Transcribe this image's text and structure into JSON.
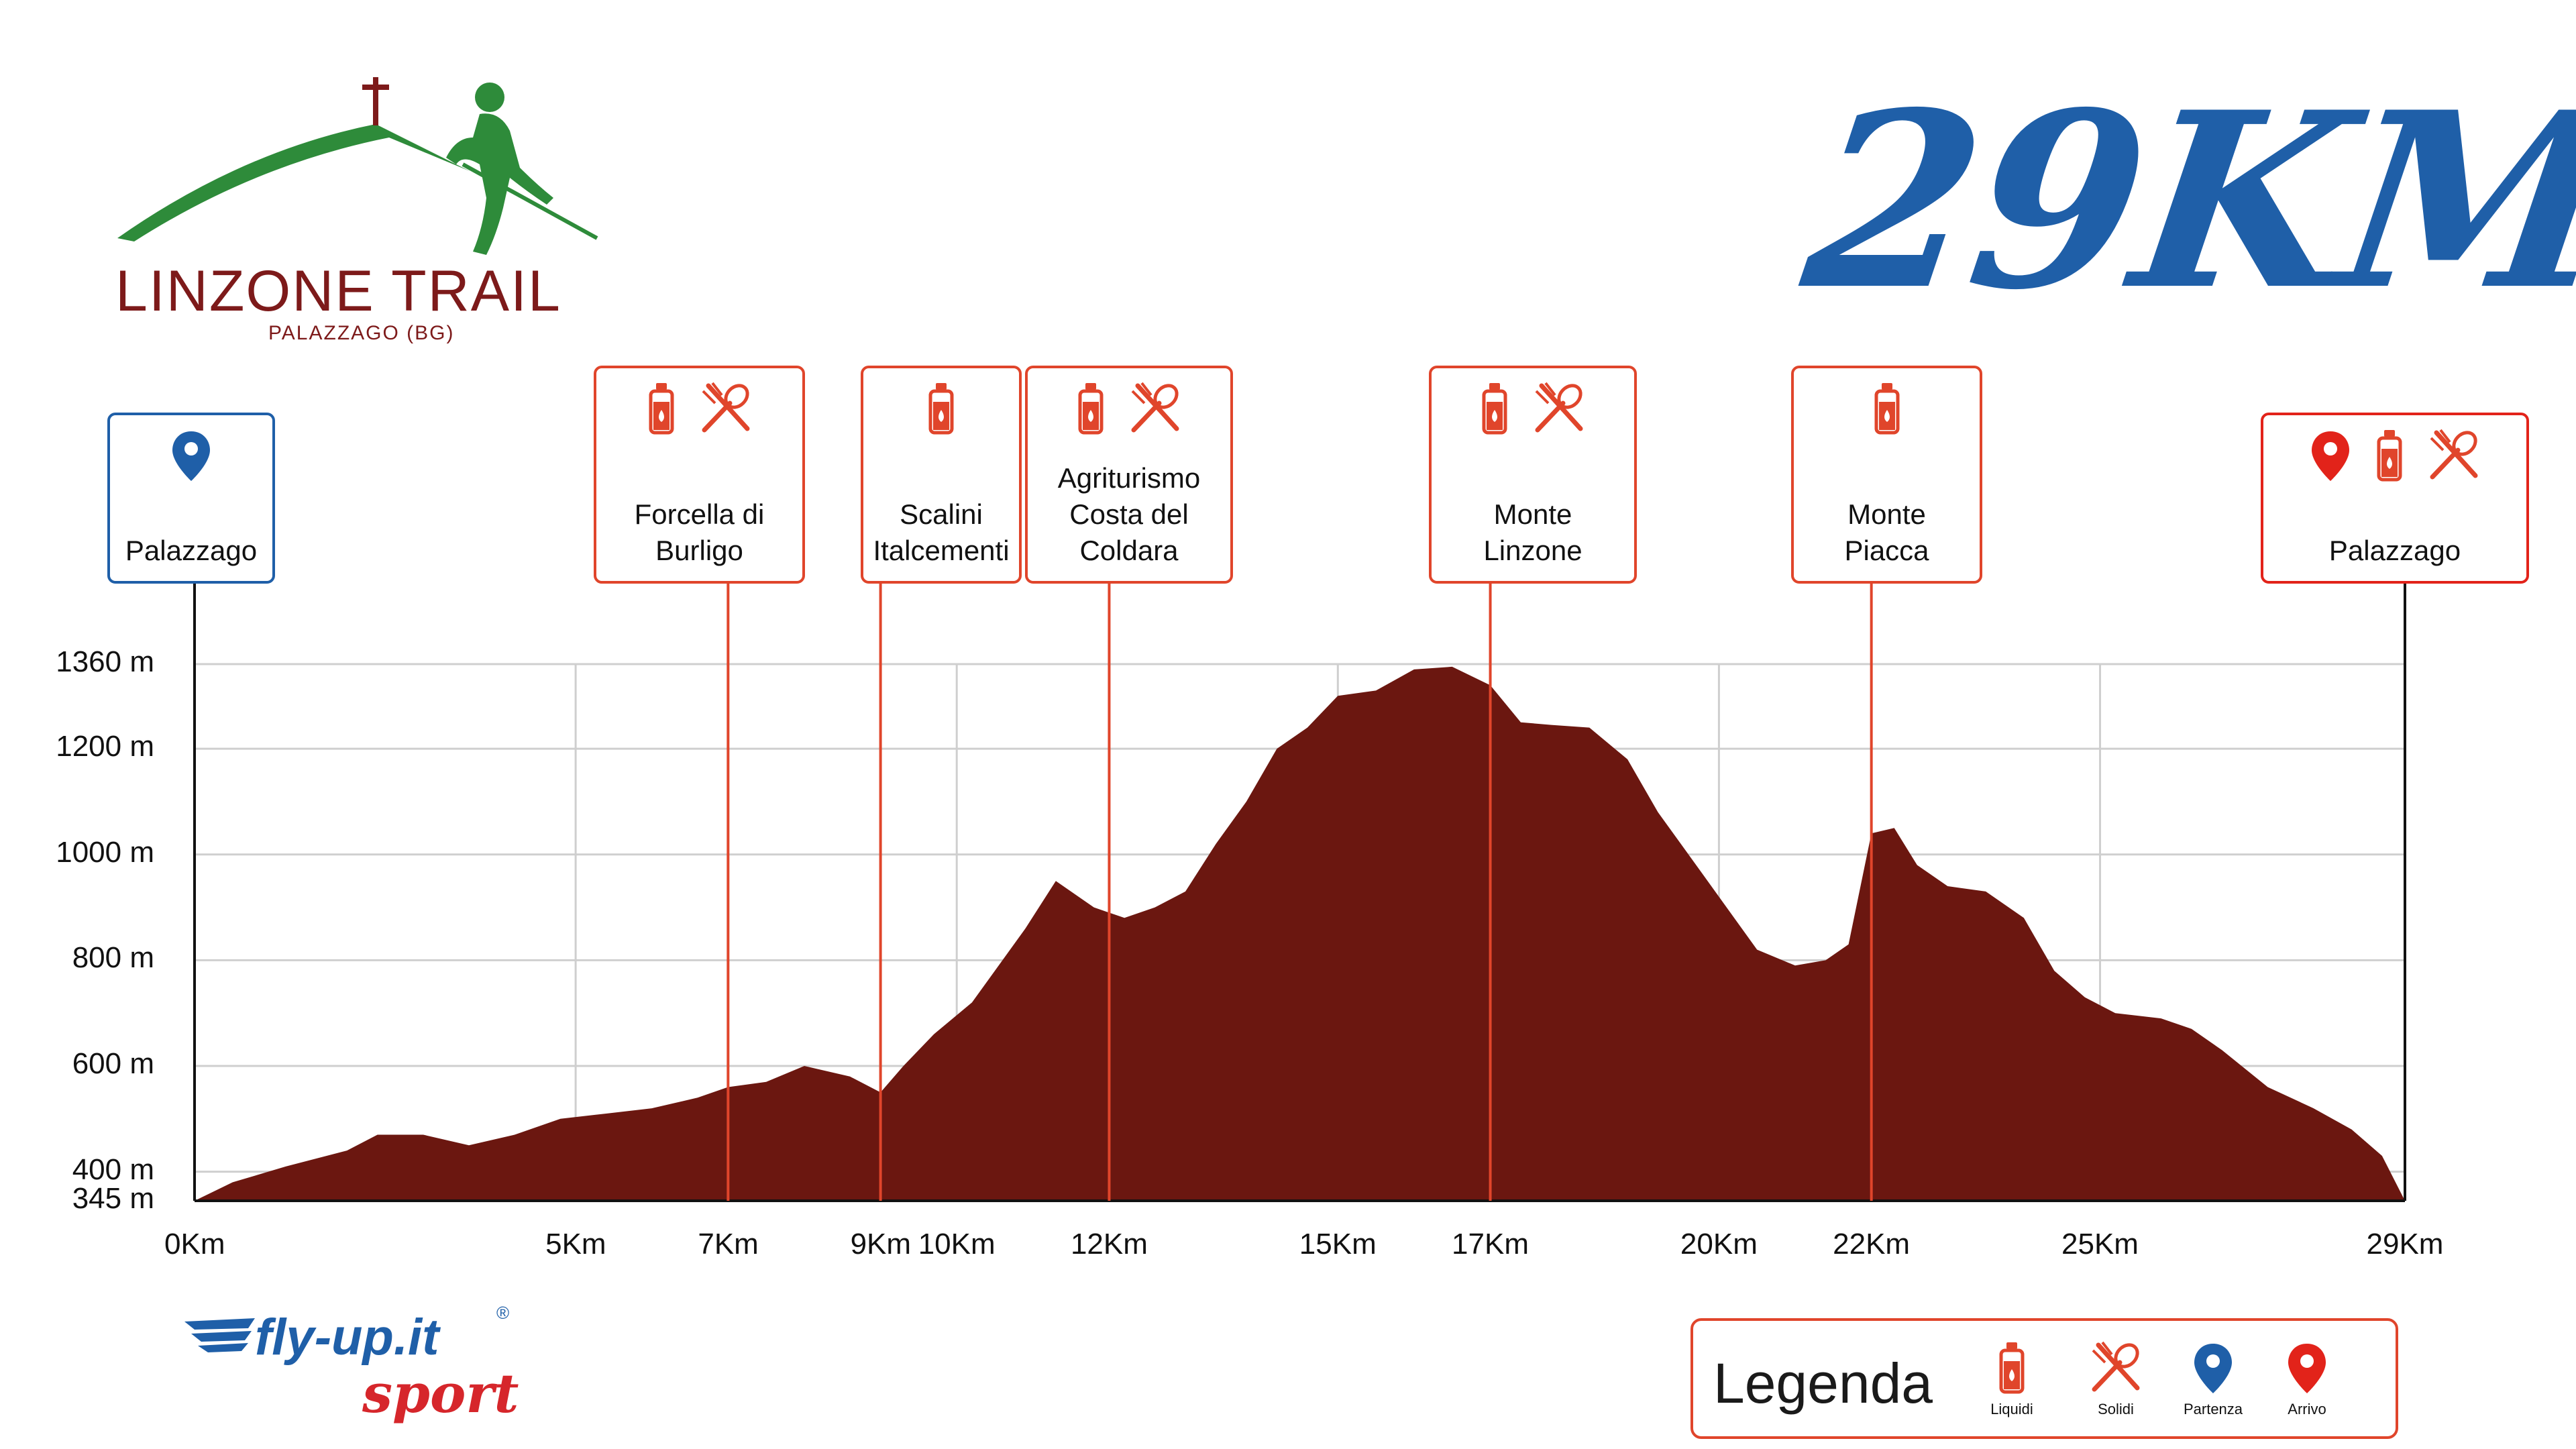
{
  "logo": {
    "title": "LINZONE TRAIL",
    "subtitle": "PALAZZAGO (BG)",
    "colors": {
      "green": "#2e8b3a",
      "maroon": "#7d1a1a"
    }
  },
  "distance_title": "29KM",
  "sponsor": {
    "name": "fly-up.it",
    "registered": "®",
    "sub": "sport"
  },
  "legend": {
    "title": "Legenda",
    "items": [
      {
        "icon": "bottle-icon",
        "label": "Liquidi"
      },
      {
        "icon": "fork-spoon-icon",
        "label": "Solidi"
      },
      {
        "icon": "pin-blue-icon",
        "label": "Partenza"
      },
      {
        "icon": "pin-red-icon",
        "label": "Arrivo"
      }
    ]
  },
  "colors": {
    "profile": "#6b1710",
    "accent": "#e0452b",
    "blue": "#1f5fa8",
    "red": "#e2231a",
    "grid": "#cfcfcf"
  },
  "chart_data": {
    "type": "area",
    "title": "29KM",
    "xlabel": "",
    "ylabel": "",
    "xlim": [
      0,
      29
    ],
    "ylim": [
      345,
      1360
    ],
    "y_ticks": [
      {
        "value": 345,
        "label": "345 m"
      },
      {
        "value": 400,
        "label": "400 m"
      },
      {
        "value": 600,
        "label": "600 m"
      },
      {
        "value": 800,
        "label": "800 m"
      },
      {
        "value": 1000,
        "label": "1000 m"
      },
      {
        "value": 1200,
        "label": "1200 m"
      },
      {
        "value": 1360,
        "label": "1360 m"
      }
    ],
    "x_ticks": [
      {
        "value": 0,
        "label": "0Km"
      },
      {
        "value": 5,
        "label": "5Km"
      },
      {
        "value": 7,
        "label": "7Km"
      },
      {
        "value": 9,
        "label": "9Km"
      },
      {
        "value": 10,
        "label": "10Km"
      },
      {
        "value": 12,
        "label": "12Km"
      },
      {
        "value": 15,
        "label": "15Km"
      },
      {
        "value": 17,
        "label": "17Km"
      },
      {
        "value": 20,
        "label": "20Km"
      },
      {
        "value": 22,
        "label": "22Km"
      },
      {
        "value": 25,
        "label": "25Km"
      },
      {
        "value": 29,
        "label": "29Km"
      }
    ],
    "grid_x": [
      0,
      5,
      10,
      15,
      20,
      25,
      29
    ],
    "profile": [
      [
        0,
        345
      ],
      [
        0.5,
        380
      ],
      [
        1.2,
        410
      ],
      [
        2,
        440
      ],
      [
        2.4,
        470
      ],
      [
        3,
        470
      ],
      [
        3.6,
        450
      ],
      [
        4.2,
        470
      ],
      [
        4.8,
        500
      ],
      [
        5.4,
        510
      ],
      [
        6,
        520
      ],
      [
        6.6,
        540
      ],
      [
        7,
        560
      ],
      [
        7.5,
        570
      ],
      [
        8,
        600
      ],
      [
        8.6,
        580
      ],
      [
        9.0,
        550
      ],
      [
        9.3,
        600
      ],
      [
        9.7,
        660
      ],
      [
        10.2,
        720
      ],
      [
        10.6,
        800
      ],
      [
        10.9,
        860
      ],
      [
        11.3,
        950
      ],
      [
        11.8,
        900
      ],
      [
        12.2,
        880
      ],
      [
        12.6,
        900
      ],
      [
        13.0,
        930
      ],
      [
        13.4,
        1020
      ],
      [
        13.8,
        1100
      ],
      [
        14.2,
        1200
      ],
      [
        14.6,
        1240
      ],
      [
        15.0,
        1300
      ],
      [
        15.5,
        1310
      ],
      [
        16,
        1350
      ],
      [
        16.5,
        1355
      ],
      [
        17,
        1320
      ],
      [
        17.4,
        1250
      ],
      [
        17.8,
        1245
      ],
      [
        18.3,
        1240
      ],
      [
        18.8,
        1180
      ],
      [
        19.2,
        1080
      ],
      [
        19.6,
        1000
      ],
      [
        20.0,
        920
      ],
      [
        20.5,
        820
      ],
      [
        21.0,
        790
      ],
      [
        21.4,
        800
      ],
      [
        21.7,
        830
      ],
      [
        22.0,
        1040
      ],
      [
        22.3,
        1050
      ],
      [
        22.6,
        980
      ],
      [
        23.0,
        940
      ],
      [
        23.5,
        930
      ],
      [
        24.0,
        880
      ],
      [
        24.4,
        780
      ],
      [
        24.8,
        730
      ],
      [
        25.2,
        700
      ],
      [
        25.8,
        690
      ],
      [
        26.2,
        670
      ],
      [
        26.6,
        630
      ],
      [
        27.2,
        560
      ],
      [
        27.8,
        520
      ],
      [
        28.3,
        480
      ],
      [
        28.7,
        430
      ],
      [
        29,
        345
      ]
    ],
    "aid_stations": [
      {
        "km": 7,
        "label": "Forcella di\nBurligo",
        "liquids": true,
        "solids": true
      },
      {
        "km": 9,
        "label": "Scalini\nItalcementi",
        "liquids": true,
        "solids": false
      },
      {
        "km": 12,
        "label": "Agriturismo\nCosta del\nColdara",
        "liquids": true,
        "solids": true
      },
      {
        "km": 17,
        "label": "Monte\nLinzone",
        "liquids": true,
        "solids": true
      },
      {
        "km": 22,
        "label": "Monte\nPiacca",
        "liquids": true,
        "solids": false
      }
    ],
    "start": {
      "km": 0,
      "label": "Palazzago"
    },
    "finish": {
      "km": 29,
      "label": "Palazzago",
      "liquids": true,
      "solids": true
    }
  }
}
